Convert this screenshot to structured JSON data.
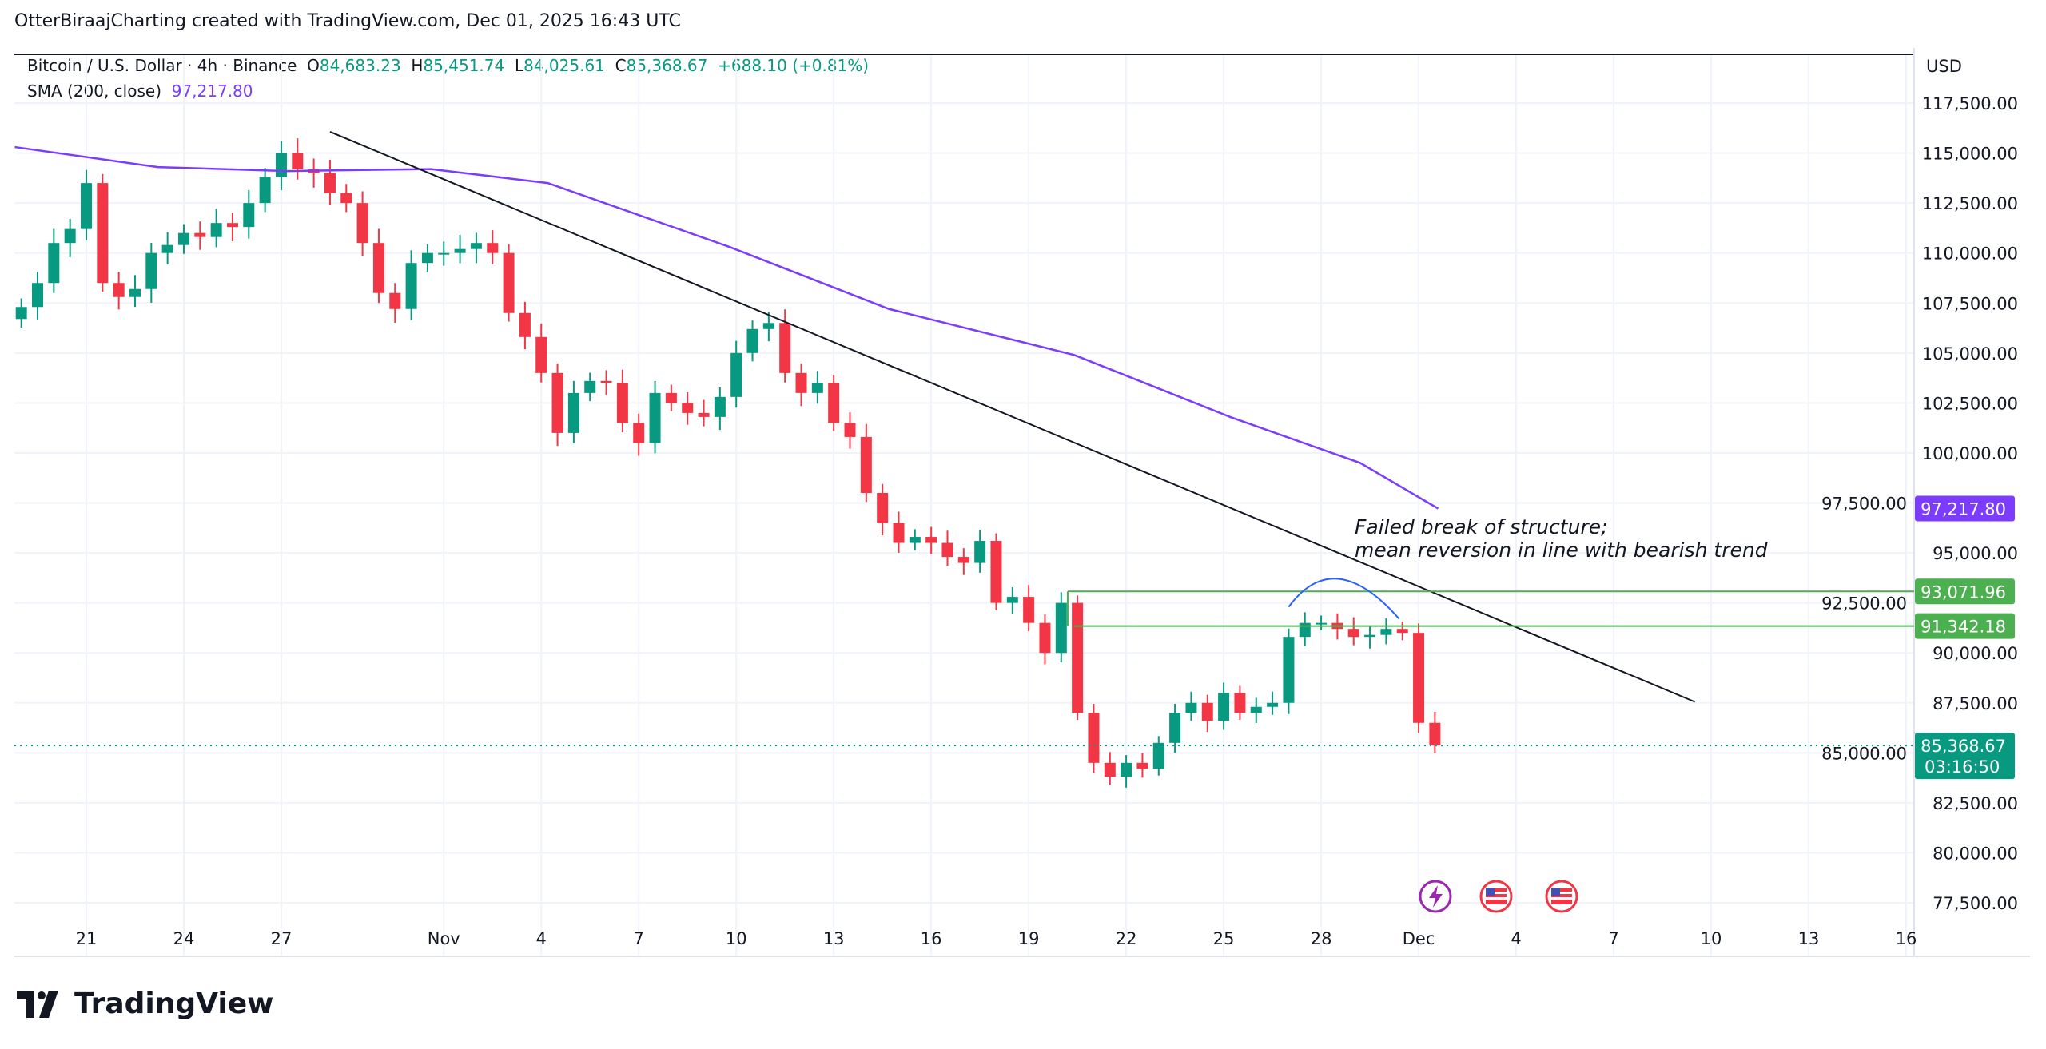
{
  "header": {
    "caption": "OtterBiraajCharting created with TradingView.com, Dec 01, 2025 16:43 UTC"
  },
  "legend": {
    "symbol": "Bitcoin / U.S. Dollar · 4h · Binance",
    "o_label": "O",
    "open": "84,683.23",
    "h_label": "H",
    "high": "85,451.74",
    "l_label": "L",
    "low": "84,025.61",
    "c_label": "C",
    "close": "85,368.67",
    "change": "+688.10 (+0.81%)",
    "sma_label": "SMA (200, close)",
    "sma_value": "97,217.80"
  },
  "price_axis": {
    "currency": "USD",
    "ticks": [
      "77,500.00",
      "80,000.00",
      "82,500.00",
      "85,000.00",
      "87,500.00",
      "90,000.00",
      "92,500.00",
      "95,000.00",
      "97,500.00",
      "100,000.00",
      "102,500.00",
      "105,000.00",
      "107,500.00",
      "110,000.00",
      "112,500.00",
      "115,000.00",
      "117,500.00"
    ],
    "sma_tag": "97,217.80",
    "level_tags": [
      "93,071.96",
      "91,342.18"
    ],
    "last_price_tag": "85,368.67",
    "countdown": "03:16:50"
  },
  "time_axis": {
    "ticks": [
      {
        "label": "21",
        "day": 21
      },
      {
        "label": "24",
        "day": 24
      },
      {
        "label": "27",
        "day": 27
      },
      {
        "label": "Nov",
        "day": 32
      },
      {
        "label": "4",
        "day": 35
      },
      {
        "label": "7",
        "day": 38
      },
      {
        "label": "10",
        "day": 41
      },
      {
        "label": "13",
        "day": 44
      },
      {
        "label": "16",
        "day": 47
      },
      {
        "label": "19",
        "day": 50
      },
      {
        "label": "22",
        "day": 53
      },
      {
        "label": "25",
        "day": 56
      },
      {
        "label": "28",
        "day": 59
      },
      {
        "label": "Dec",
        "day": 62
      },
      {
        "label": "4",
        "day": 65
      },
      {
        "label": "7",
        "day": 68
      },
      {
        "label": "10",
        "day": 71
      },
      {
        "label": "13",
        "day": 74
      },
      {
        "label": "16",
        "day": 77
      }
    ]
  },
  "annotation": {
    "line1": "Failed break of structure;",
    "line2": "mean reversion in line with bearish trend"
  },
  "brand": {
    "logo_text": "TradingView"
  },
  "colors": {
    "up": "#089981",
    "down": "#f23645",
    "sma": "#7b3cff",
    "levels": "#4caf50",
    "trendline": "#131722",
    "arc": "#2962ff"
  },
  "chart_data": {
    "type": "candlestick",
    "title": "Bitcoin / U.S. Dollar · 4h · Binance",
    "x_unit": "day (Oct 1 = 1)",
    "candles_start_day": 19,
    "candle_step_days": 0.5,
    "closes": [
      107300,
      108500,
      110500,
      111200,
      113500,
      108500,
      107800,
      108200,
      110000,
      110400,
      111000,
      110800,
      111500,
      111300,
      112500,
      113800,
      115000,
      114200,
      114000,
      113000,
      112500,
      110500,
      108000,
      107200,
      109500,
      110000,
      110000,
      110200,
      110500,
      110000,
      107000,
      105800,
      104000,
      101000,
      103000,
      103600,
      103500,
      101500,
      100500,
      103000,
      102500,
      102000,
      101800,
      102800,
      105000,
      106200,
      106500,
      104000,
      103000,
      103500,
      101500,
      100800,
      98000,
      96500,
      95500,
      95800,
      95500,
      94800,
      94500,
      95600,
      92500,
      92800,
      91500,
      90000,
      92500,
      87000,
      84500,
      83800,
      84500,
      84200,
      85500,
      87000,
      87500,
      86600,
      88000,
      87000,
      87300,
      87500,
      90800,
      91500,
      91500,
      91200,
      90800,
      90900,
      91200,
      91000,
      86500,
      85368.67
    ],
    "sma_200": {
      "days": [
        18.8,
        23.2,
        27.2,
        31.6,
        35.2,
        40.8,
        45.7,
        51.4,
        56.2,
        60.2,
        62.6
      ],
      "values": [
        115300,
        114300,
        114100,
        114200,
        113500,
        110300,
        107200,
        104900,
        101800,
        99500,
        97217.8
      ]
    },
    "trendline": {
      "days": [
        28.5,
        70.5
      ],
      "values": [
        116065,
        87550
      ]
    },
    "levels": [
      {
        "start_day": 51.2,
        "value": 93071.96
      },
      {
        "start_day": 51.4,
        "value": 91342.18
      }
    ],
    "arc": {
      "days": [
        58,
        59.4,
        61.4
      ],
      "values": [
        92300,
        93600,
        91700
      ]
    },
    "last_price": 85368.67,
    "ylim": [
      77500,
      117500
    ]
  }
}
